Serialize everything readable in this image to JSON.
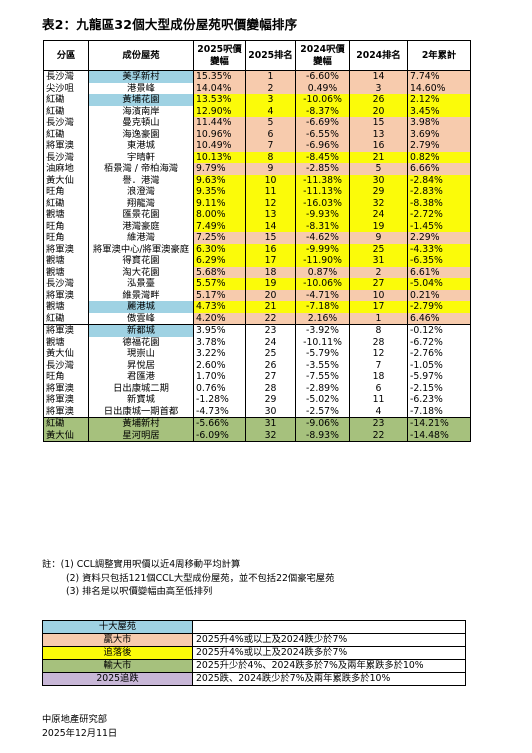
{
  "title": "表2：九龍區32個大型成份屋苑呎價變幅排序",
  "table": {
    "headers": [
      "分區",
      "成份屋苑",
      "2025呎價變幅",
      "2025排名",
      "2024呎價變幅",
      "2024排名",
      "2年累計"
    ],
    "rows": [
      {
        "district": "長沙灣",
        "estate": "美孚新村",
        "chg2025": "15.35%",
        "rank2025": "1",
        "chg2024": "-6.60%",
        "rank2024": "14",
        "cum": "7.74%",
        "style": "orange",
        "estate_style": "blue"
      },
      {
        "district": "尖沙咀",
        "estate": "港景峰",
        "chg2025": "14.04%",
        "rank2025": "2",
        "chg2024": "0.49%",
        "rank2024": "3",
        "cum": "14.60%",
        "style": "orange",
        "estate_style": ""
      },
      {
        "district": "紅磡",
        "estate": "黃埔花園",
        "chg2025": "13.53%",
        "rank2025": "3",
        "chg2024": "-10.06%",
        "rank2024": "26",
        "cum": "2.12%",
        "style": "yellow",
        "estate_style": "blue"
      },
      {
        "district": "紅磡",
        "estate": "海濱南岸",
        "chg2025": "12.90%",
        "rank2025": "4",
        "chg2024": "-8.37%",
        "rank2024": "20",
        "cum": "3.45%",
        "style": "yellow",
        "estate_style": ""
      },
      {
        "district": "長沙灣",
        "estate": "曼克頓山",
        "chg2025": "11.44%",
        "rank2025": "5",
        "chg2024": "-6.69%",
        "rank2024": "15",
        "cum": "3.98%",
        "style": "orange",
        "estate_style": ""
      },
      {
        "district": "紅磡",
        "estate": "海逸豪園",
        "chg2025": "10.96%",
        "rank2025": "6",
        "chg2024": "-6.55%",
        "rank2024": "13",
        "cum": "3.69%",
        "style": "orange",
        "estate_style": ""
      },
      {
        "district": "將軍澳",
        "estate": "東港城",
        "chg2025": "10.49%",
        "rank2025": "7",
        "chg2024": "-6.96%",
        "rank2024": "16",
        "cum": "2.79%",
        "style": "orange",
        "estate_style": ""
      },
      {
        "district": "長沙灣",
        "estate": "宇晴軒",
        "chg2025": "10.13%",
        "rank2025": "8",
        "chg2024": "-8.45%",
        "rank2024": "21",
        "cum": "0.82%",
        "style": "yellow",
        "estate_style": ""
      },
      {
        "district": "油麻地",
        "estate": "栢景灣 / 帝柏海灣",
        "chg2025": "9.79%",
        "rank2025": "9",
        "chg2024": "-2.85%",
        "rank2024": "5",
        "cum": "6.66%",
        "style": "orange",
        "estate_style": ""
      },
      {
        "district": "黃大仙",
        "estate": "譽．港灣",
        "chg2025": "9.63%",
        "rank2025": "10",
        "chg2024": "-11.38%",
        "rank2024": "30",
        "cum": "-2.84%",
        "style": "yellow",
        "estate_style": ""
      },
      {
        "district": "旺角",
        "estate": "浪澄灣",
        "chg2025": "9.35%",
        "rank2025": "11",
        "chg2024": "-11.13%",
        "rank2024": "29",
        "cum": "-2.83%",
        "style": "yellow",
        "estate_style": ""
      },
      {
        "district": "紅磡",
        "estate": "翔龍灣",
        "chg2025": "9.11%",
        "rank2025": "12",
        "chg2024": "-16.03%",
        "rank2024": "32",
        "cum": "-8.38%",
        "style": "yellow",
        "estate_style": ""
      },
      {
        "district": "觀塘",
        "estate": "匯景花園",
        "chg2025": "8.00%",
        "rank2025": "13",
        "chg2024": "-9.93%",
        "rank2024": "24",
        "cum": "-2.72%",
        "style": "yellow",
        "estate_style": ""
      },
      {
        "district": "旺角",
        "estate": "港灣豪庭",
        "chg2025": "7.49%",
        "rank2025": "14",
        "chg2024": "-8.31%",
        "rank2024": "19",
        "cum": "-1.45%",
        "style": "yellow",
        "estate_style": ""
      },
      {
        "district": "旺角",
        "estate": "維港灣",
        "chg2025": "7.25%",
        "rank2025": "15",
        "chg2024": "-4.62%",
        "rank2024": "9",
        "cum": "2.29%",
        "style": "orange",
        "estate_style": ""
      },
      {
        "district": "將軍澳",
        "estate": "將軍澳中心/將軍澳豪庭",
        "chg2025": "6.30%",
        "rank2025": "16",
        "chg2024": "-9.99%",
        "rank2024": "25",
        "cum": "-4.33%",
        "style": "yellow",
        "estate_style": ""
      },
      {
        "district": "觀塘",
        "estate": "得寶花園",
        "chg2025": "6.29%",
        "rank2025": "17",
        "chg2024": "-11.90%",
        "rank2024": "31",
        "cum": "-6.35%",
        "style": "yellow",
        "estate_style": ""
      },
      {
        "district": "觀塘",
        "estate": "淘大花園",
        "chg2025": "5.68%",
        "rank2025": "18",
        "chg2024": "0.87%",
        "rank2024": "2",
        "cum": "6.61%",
        "style": "orange",
        "estate_style": ""
      },
      {
        "district": "長沙灣",
        "estate": "泓景臺",
        "chg2025": "5.57%",
        "rank2025": "19",
        "chg2024": "-10.06%",
        "rank2024": "27",
        "cum": "-5.04%",
        "style": "yellow",
        "estate_style": ""
      },
      {
        "district": "將軍澳",
        "estate": "維景灣畔",
        "chg2025": "5.17%",
        "rank2025": "20",
        "chg2024": "-4.71%",
        "rank2024": "10",
        "cum": "0.21%",
        "style": "orange",
        "estate_style": ""
      },
      {
        "district": "觀塘",
        "estate": "麗港城",
        "chg2025": "4.73%",
        "rank2025": "21",
        "chg2024": "-7.18%",
        "rank2024": "17",
        "cum": "-2.79%",
        "style": "yellow",
        "estate_style": "blue"
      },
      {
        "district": "紅磡",
        "estate": "傲雲峰",
        "chg2025": "4.20%",
        "rank2025": "22",
        "chg2024": "2.16%",
        "rank2024": "1",
        "cum": "6.46%",
        "style": "orange",
        "estate_style": ""
      },
      {
        "district": "將軍澳",
        "estate": "新都城",
        "chg2025": "3.95%",
        "rank2025": "23",
        "chg2024": "-3.92%",
        "rank2024": "8",
        "cum": "-0.12%",
        "style": "",
        "estate_style": "blue"
      },
      {
        "district": "觀塘",
        "estate": "德福花園",
        "chg2025": "3.78%",
        "rank2025": "24",
        "chg2024": "-10.11%",
        "rank2024": "28",
        "cum": "-6.72%",
        "style": "",
        "estate_style": ""
      },
      {
        "district": "黃大仙",
        "estate": "現崇山",
        "chg2025": "3.22%",
        "rank2025": "25",
        "chg2024": "-5.79%",
        "rank2024": "12",
        "cum": "-2.76%",
        "style": "",
        "estate_style": ""
      },
      {
        "district": "長沙灣",
        "estate": "昇悅居",
        "chg2025": "2.60%",
        "rank2025": "26",
        "chg2024": "-3.55%",
        "rank2024": "7",
        "cum": "-1.05%",
        "style": "",
        "estate_style": ""
      },
      {
        "district": "旺角",
        "estate": "君匯港",
        "chg2025": "1.70%",
        "rank2025": "27",
        "chg2024": "-7.55%",
        "rank2024": "18",
        "cum": "-5.97%",
        "style": "",
        "estate_style": ""
      },
      {
        "district": "將軍澳",
        "estate": "日出康城二期",
        "chg2025": "0.76%",
        "rank2025": "28",
        "chg2024": "-2.89%",
        "rank2024": "6",
        "cum": "-2.15%",
        "style": "",
        "estate_style": ""
      },
      {
        "district": "將軍澳",
        "estate": "新寶城",
        "chg2025": "-1.28%",
        "rank2025": "29",
        "chg2024": "-5.02%",
        "rank2024": "11",
        "cum": "-6.23%",
        "style": "",
        "estate_style": ""
      },
      {
        "district": "將軍澳",
        "estate": "日出康城一期首都",
        "chg2025": "-4.73%",
        "rank2025": "30",
        "chg2024": "-2.57%",
        "rank2024": "4",
        "cum": "-7.18%",
        "style": "",
        "estate_style": ""
      },
      {
        "district": "紅磡",
        "estate": "黃埔新村",
        "chg2025": "-5.66%",
        "rank2025": "31",
        "chg2024": "-9.06%",
        "rank2024": "23",
        "cum": "-14.21%",
        "style": "green",
        "estate_style": ""
      },
      {
        "district": "黃大仙",
        "estate": "星河明居",
        "chg2025": "-6.09%",
        "rank2025": "32",
        "chg2024": "-8.93%",
        "rank2024": "22",
        "cum": "-14.48%",
        "style": "green",
        "estate_style": ""
      }
    ]
  },
  "notes": {
    "prefix": "註：",
    "items": [
      "(1) CCL調整實用呎價以近4周移動平均計算",
      "(2) 資料只包括121個CCL大型成份屋苑，並不包括22個豪宅屋苑",
      "(3) 排名是以呎價變幅由高至低排列"
    ]
  },
  "legend": [
    {
      "label": "十大屋苑",
      "desc": "",
      "style": "blue"
    },
    {
      "label": "贏大市",
      "desc": "2025升4%或以上及2024跌少於7%",
      "style": "orange"
    },
    {
      "label": "追落後",
      "desc": "2025升4%或以上及2024跌多於7%",
      "style": "yellow"
    },
    {
      "label": "輸大市",
      "desc": "2025升少於4%、2024跌多於7%及兩年累跌多於10%",
      "style": "green"
    },
    {
      "label": "2025追跌",
      "desc": "2025跌、2024跌少於7%及兩年累跌多於10%",
      "style": "purple"
    }
  ],
  "footer": {
    "org": "中原地產研究部",
    "date": "2025年12月11日"
  },
  "colors": {
    "orange": "#f7cbad",
    "yellow": "#fbfb09",
    "blue": "#9fd2e3",
    "green": "#a6c17d",
    "purple": "#c8b7d7"
  }
}
